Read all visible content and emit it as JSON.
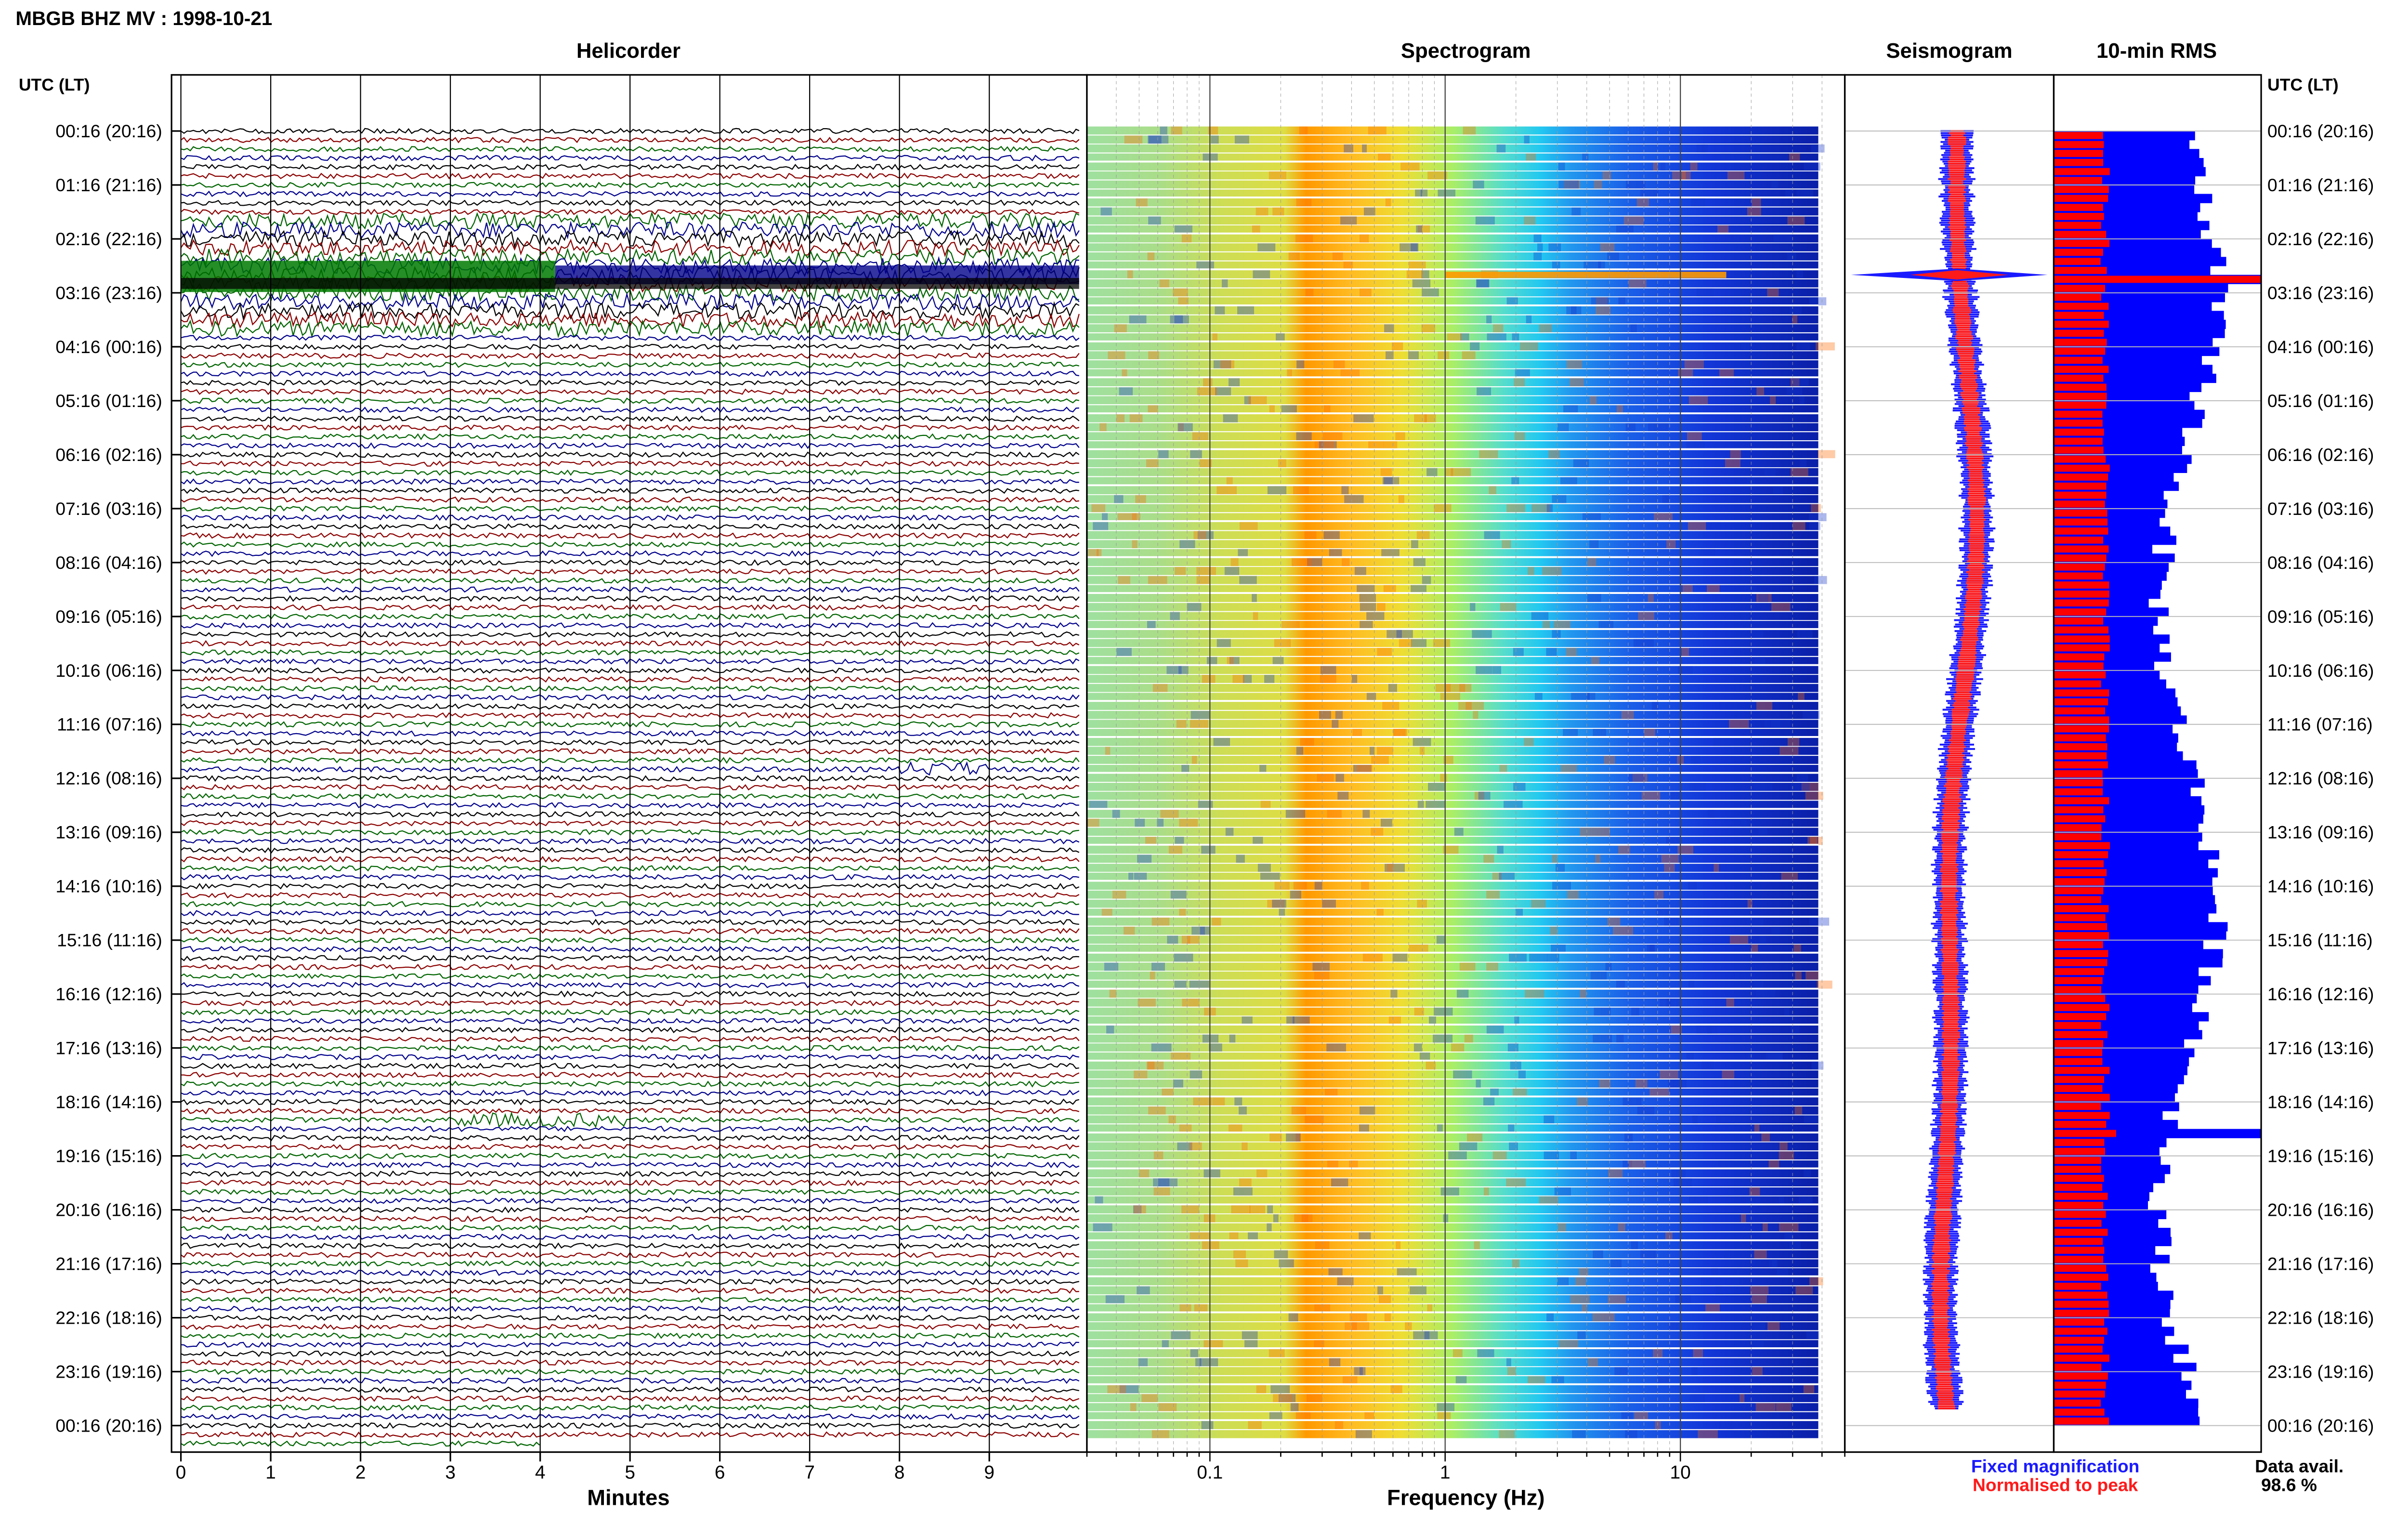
{
  "header": {
    "title": "MBGB BHZ MV : 1998-10-21"
  },
  "panels": {
    "helicorder": "Helicorder",
    "spectrogram": "Spectrogram",
    "seismogram": "Seismogram",
    "rms": "10-min RMS"
  },
  "axis_titles": {
    "left_time": "UTC (LT)",
    "right_time": "UTC (LT)",
    "minutes": "Minutes",
    "frequency": "Frequency (Hz)"
  },
  "legend": {
    "fixed": "Fixed magnification",
    "normalised": "Normalised to peak",
    "fixed_color": "#1a1aff",
    "normalised_color": "#ff1a1a"
  },
  "data_availability": {
    "label": "Data avail.",
    "value": "98.6 %"
  },
  "colors": {
    "trace_cycle": [
      "#000000",
      "#8b0000",
      "#006400",
      "#00008b"
    ],
    "rms_fixed": "#0000ff",
    "rms_normalised": "#ff0000"
  },
  "chart_data": {
    "type": "heatmap",
    "time_labels": [
      "00:16 (20:16)",
      "01:16 (21:16)",
      "02:16 (22:16)",
      "03:16 (23:16)",
      "04:16 (00:16)",
      "05:16 (01:16)",
      "06:16 (02:16)",
      "07:16 (03:16)",
      "08:16 (04:16)",
      "09:16 (05:16)",
      "10:16 (06:16)",
      "11:16 (07:16)",
      "12:16 (08:16)",
      "13:16 (09:16)",
      "14:16 (10:16)",
      "15:16 (11:16)",
      "16:16 (12:16)",
      "17:16 (13:16)",
      "18:16 (14:16)",
      "19:16 (15:16)",
      "20:16 (16:16)",
      "21:16 (17:16)",
      "22:16 (18:16)",
      "23:16 (19:16)",
      "00:16 (20:16)"
    ],
    "minute_ticks": [
      0,
      1,
      2,
      3,
      4,
      5,
      6,
      7,
      8,
      9
    ],
    "minute_range": [
      0,
      10
    ],
    "frequency_scale": "log",
    "frequency_range": [
      0.03,
      50
    ],
    "frequency_ticks": [
      0.1,
      1,
      10
    ],
    "frequency_tick_labels": [
      "0.1",
      "1",
      "10"
    ],
    "helicorder_events_utc": [
      {
        "time": "02:56",
        "minute_range": [
          0,
          10
        ],
        "note": "large event"
      },
      {
        "time": "12:06",
        "minute_range": [
          8,
          9
        ]
      },
      {
        "time": "18:36",
        "minute_range": [
          3,
          5
        ]
      }
    ],
    "rms_spikes_utc": [
      "02:56",
      "18:46"
    ]
  }
}
